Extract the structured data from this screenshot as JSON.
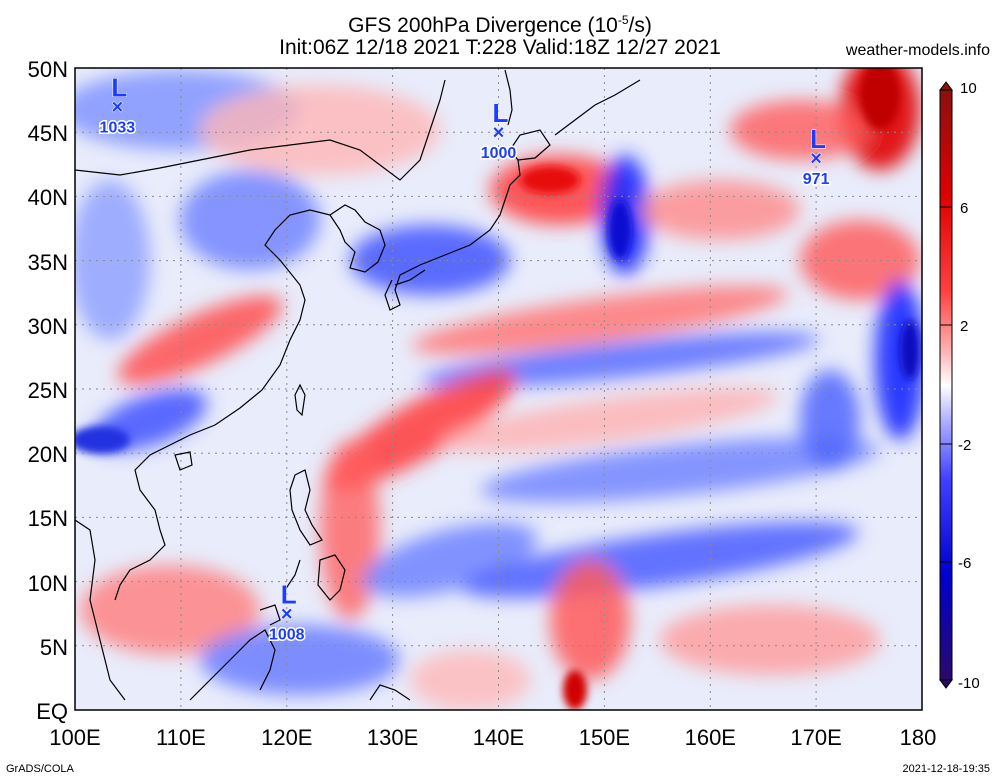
{
  "header": {
    "title_line1_prefix": "GFS 200hPa Divergence (10",
    "title_line1_exp": "-5",
    "title_line1_suffix": "/s)",
    "title_line2": "Init:06Z 12/18 2021 T:228 Valid:18Z 12/27 2021",
    "site": "weather-models.info"
  },
  "map": {
    "lat_labels": [
      "50N",
      "45N",
      "40N",
      "35N",
      "30N",
      "25N",
      "20N",
      "15N",
      "10N",
      "5N",
      "EQ"
    ],
    "lon_labels": [
      "100E",
      "110E",
      "120E",
      "130E",
      "140E",
      "150E",
      "160E",
      "170E",
      "180"
    ],
    "extent": {
      "lon_min": 100,
      "lon_max": 180,
      "lat_min": 0,
      "lat_max": 50
    },
    "grid": "dotted",
    "lows": [
      {
        "letter": "L",
        "value": "1033",
        "lon": 104,
        "lat": 47
      },
      {
        "letter": "L",
        "value": "1000",
        "lon": 140,
        "lat": 45
      },
      {
        "letter": "L",
        "value": "971",
        "lon": 170,
        "lat": 43
      },
      {
        "letter": "L",
        "value": "1008",
        "lon": 120,
        "lat": 7.5
      }
    ]
  },
  "colorbar": {
    "labels": [
      "10",
      "6",
      "2",
      "-2",
      "-6",
      "-10"
    ],
    "colors": [
      "#7d0c0c",
      "#e60000",
      "#ff6a6a",
      "#ffe5e5",
      "#e6e6ff",
      "#6a6aff",
      "#0000e6",
      "#3c1470"
    ]
  },
  "footer": {
    "left": "GrADS/COLA",
    "right": "2021-12-18-19:35"
  }
}
